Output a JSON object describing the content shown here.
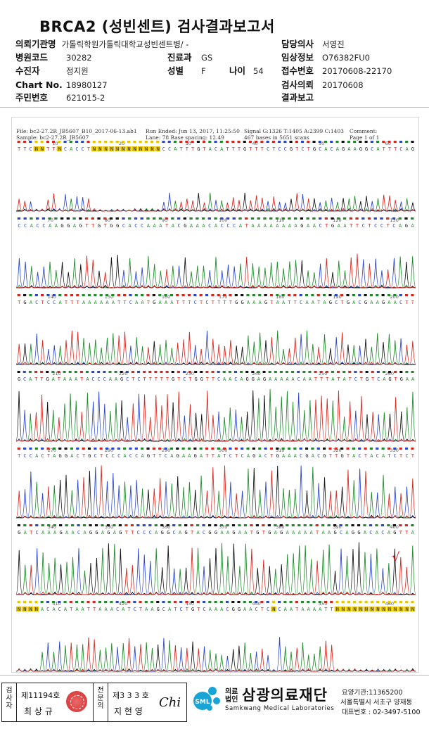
{
  "report": {
    "title": "BRCA2 (성빈센트) 검사결과보고서"
  },
  "header": {
    "institution_label": "의뢰기관명",
    "institution_value": "가톨릭학원가톨릭대학교성빈센트병/ -",
    "hospital_code_label": "병원코드",
    "hospital_code_value": "30282",
    "dept_label": "진료과",
    "dept_value": "GS",
    "collector_label": "수진자",
    "collector_value": "정지원",
    "sex_label": "성별",
    "sex_value": "F",
    "age_label": "나이",
    "age_value": "54",
    "chart_label": "Chart No.",
    "chart_value": "18980127",
    "ssn_label": "주민번호",
    "ssn_value": "621015-2",
    "doctor_label": "담당의사",
    "doctor_value": "서영진",
    "clinical_label": "임상정보",
    "clinical_value": "O76382FU0",
    "receipt_label": "접수번호",
    "receipt_value": "20170608-22170",
    "request_label": "검사의뢰",
    "request_value": "20170608",
    "result_label": "결과보고",
    "result_value": ""
  },
  "trace": {
    "file_line": "File: bc2-27.2R_JB5607_B10_2017-06-13.ab1",
    "sample_line": "Sample: bc2-27.2R_JB5607",
    "run_line": "Run Ended: Jun 13, 2017, 11:25:50",
    "lane_line": "Lane: 78   Base spacing: 12.49",
    "signal_line": "Signal G:1326 T:1405 A:2399 C:1403",
    "bases_line": "467 bases in 5651 scans",
    "comment_line": "Comment:",
    "page_line": "Page 1 of 1",
    "marker": "√",
    "rows": [
      {
        "seq": "TTCNNTTNCACCTNNNNNNNNNNNNCCATTTGTACATTTGTTTCTCCGTCTGCACAGAAGGCATTTCAG",
        "ticks": [
          "10",
          "20",
          "30",
          "40",
          "50",
          "60"
        ]
      },
      {
        "seq": "CCACCAAGGAGTTGTGGCACCAAATACGAAACACCCATAAAAAAAAGAACTGAATTCTCCTCAGA",
        "ticks": [
          "70",
          "80",
          "90",
          "100",
          "110",
          "120",
          "130"
        ]
      },
      {
        "seq": "TGACTCCATTTAAAAAATTCAATGAAATTTCTCTTTTGGAAAGTAATTCAATAGCTGACGAAGAACTT",
        "ticks": [
          "140",
          "150",
          "160",
          "170",
          "180",
          "190",
          "200"
        ]
      },
      {
        "seq": "GCATTGATAAATACCCAAGCTCTTTTTGTCTGGTTCAACAGGAGAAAAACAATTTATATCTGTCAGTGAA",
        "ticks": [
          "210",
          "220",
          "230",
          "240",
          "250",
          "260"
        ]
      },
      {
        "seq": "TCCACTAGGACTGCTCCCACCAGTTCAGAAGATTATCTCAGACTGAAACGACGTTGTACTACATCTCT",
        "ticks": [
          "270",
          "280",
          "290",
          "300",
          "310",
          "320",
          "330"
        ]
      },
      {
        "seq": "GATCAAAGAACAGGAGAGTTCCCAGGCAGTACGGAAGAATGTGAGAAAAATAAGCAGGACACAGTTA",
        "ticks": [
          "340",
          "350",
          "360",
          "370",
          "380",
          "390",
          "400"
        ]
      },
      {
        "seq": "NNNNACACATAATTAAACATCTAAGCATCTGTCAAACGGAACTCNCAATAAAATTNNNNNNNNNNNNNN",
        "ticks": [
          "410",
          "420",
          "430",
          "440",
          "450",
          "460"
        ]
      }
    ]
  },
  "footer": {
    "examiner_label": "검사자",
    "examiner_no": "제11194호",
    "examiner_name": "최 상 규",
    "specialist_label": "전문의",
    "specialist_no": "제3 3 3 호",
    "specialist_name": "지 현 영",
    "signature": "Chi",
    "org_prefix": "의료법인",
    "org_name": "삼광의료재단",
    "org_en": "Samkwang Medical Laboratories",
    "logo_text": "SML",
    "care_no": "요양기관:11365200",
    "address": "서울특별시 서초구 양재동",
    "phone": "대표번호 : 02-3497-5100"
  },
  "colors": {
    "A": "#1f8a2a",
    "C": "#2b46c8",
    "G": "#111111",
    "T": "#d8261e",
    "N": "#e6c400"
  }
}
